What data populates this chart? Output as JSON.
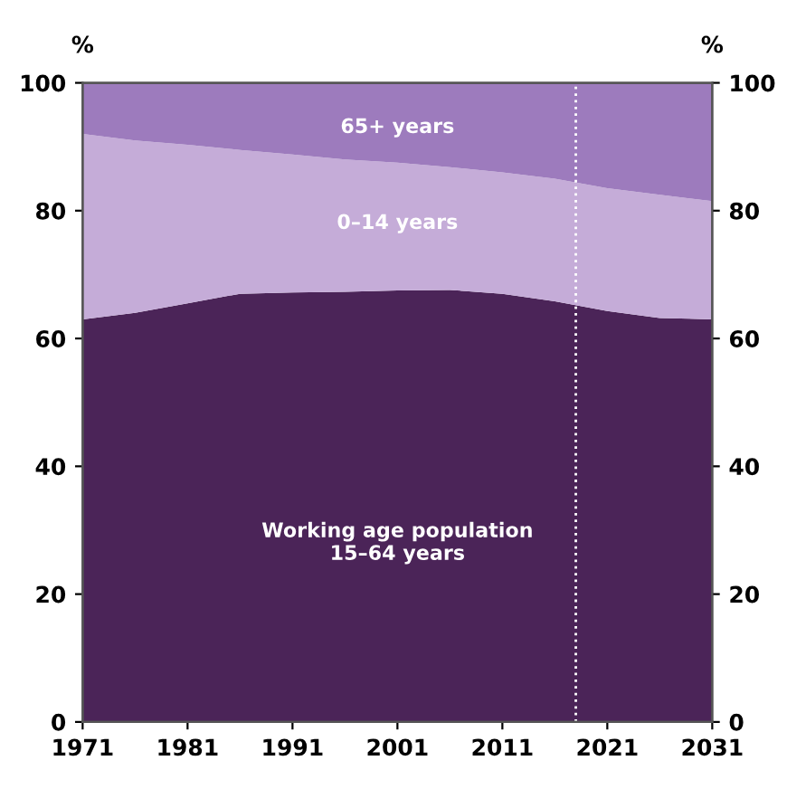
{
  "chart_data": {
    "type": "area",
    "stacked": true,
    "x": [
      1971,
      1976,
      1981,
      1986,
      1991,
      1996,
      2001,
      2006,
      2011,
      2016,
      2021,
      2026,
      2031
    ],
    "series": [
      {
        "color": "#4b2458",
        "values": [
          63,
          64,
          65.5,
          67,
          67.2,
          67.3,
          67.5,
          67.6,
          67,
          65.8,
          64.3,
          63.2,
          63
        ]
      },
      {
        "color": "#c5acd8",
        "values": [
          29,
          27,
          24.8,
          22.5,
          21.6,
          20.7,
          20,
          19.2,
          19,
          19.2,
          19.2,
          19.3,
          18.5
        ]
      },
      {
        "color": "#9d7bbd",
        "values": [
          8,
          9,
          9.7,
          10.5,
          11.2,
          12,
          12.5,
          13.2,
          14,
          15,
          16.5,
          17.5,
          18.5
        ]
      }
    ],
    "xlim": [
      1971,
      2031
    ],
    "xticks": [
      1971,
      1981,
      1991,
      2001,
      2011,
      2021,
      2031
    ],
    "ylim": [
      0,
      100
    ],
    "yticks": [
      0,
      20,
      40,
      60,
      80,
      100
    ],
    "y2lim": [
      0,
      100
    ],
    "y2ticks": [
      0,
      20,
      40,
      60,
      80,
      100
    ],
    "ylabel": "%",
    "y2label": "%",
    "ref_lines": [
      {
        "axis": "x",
        "value": 2018,
        "color": "#ffffff",
        "line_style": "dotted"
      }
    ],
    "annotations": [
      "65+ years",
      "0–14 years",
      "Working age population\n15–64 years"
    ],
    "grid": false,
    "legend": false
  }
}
